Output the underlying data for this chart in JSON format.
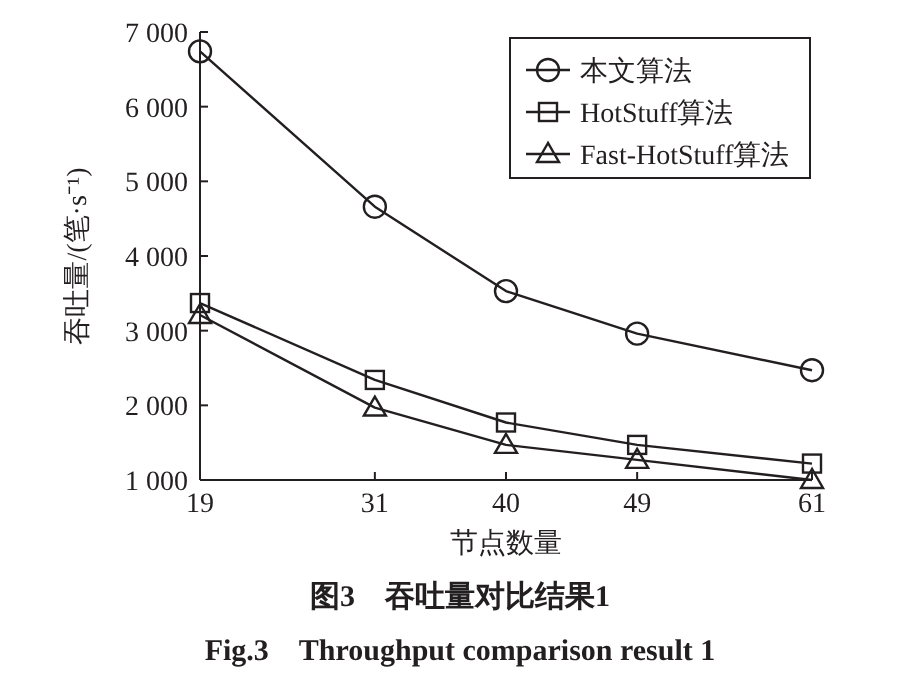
{
  "chart_data": {
    "type": "line",
    "xlabel": "节点数量",
    "ylabel": "吞吐量/(笔·s⁻¹)",
    "x": [
      19,
      31,
      40,
      49,
      61
    ],
    "xlim": [
      19,
      61
    ],
    "xticks": [
      19,
      31,
      40,
      49,
      61
    ],
    "ylim": [
      1000,
      7000
    ],
    "yticks": [
      {
        "value": 1000,
        "label": "1 000"
      },
      {
        "value": 2000,
        "label": "2 000"
      },
      {
        "value": 3000,
        "label": "3 000"
      },
      {
        "value": 4000,
        "label": "4 000"
      },
      {
        "value": 5000,
        "label": "5 000"
      },
      {
        "value": 6000,
        "label": "6 000"
      },
      {
        "value": 7000,
        "label": "7 000"
      }
    ],
    "series": [
      {
        "name": "本文算法",
        "color": "#231f20",
        "marker": "circle",
        "values": [
          6740,
          4660,
          3530,
          2960,
          2470
        ]
      },
      {
        "name": "HotStuff算法",
        "color": "#231f20",
        "marker": "square",
        "values": [
          3370,
          2340,
          1770,
          1470,
          1220
        ]
      },
      {
        "name": "Fast-HotStuff算法",
        "color": "#231f20",
        "marker": "triangle",
        "values": [
          3210,
          1970,
          1470,
          1270,
          1000
        ]
      }
    ],
    "legend": "top right",
    "grid": false,
    "annotations": [
      "图3　吞吐量对比结果1",
      "Fig.3　Throughput comparison result 1"
    ]
  }
}
